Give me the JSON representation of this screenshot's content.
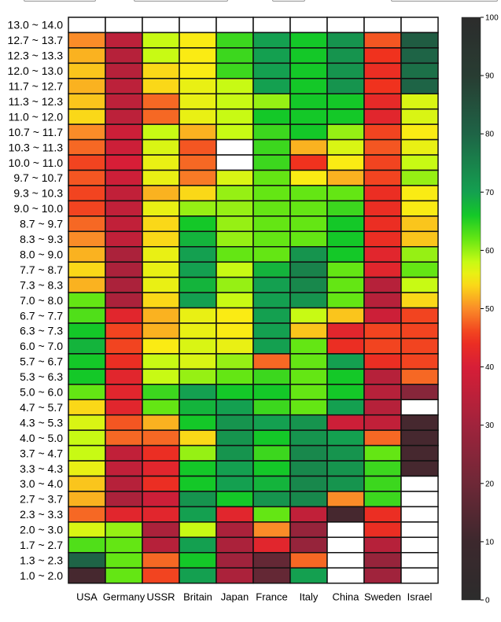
{
  "controls": [
    {
      "name": "dropdown-1"
    },
    {
      "name": "dropdown-2"
    },
    {
      "name": "dropdown-3"
    },
    {
      "name": "dropdown-4"
    }
  ],
  "chart_data": {
    "type": "heatmap",
    "x_categories": [
      "USA",
      "Germany",
      "USSR",
      "Britain",
      "Japan",
      "France",
      "Italy",
      "China",
      "Sweden",
      "Israel"
    ],
    "y_categories": [
      "13.0 ~ 14.0",
      "12.7 ~ 13.7",
      "12.3 ~ 13.3",
      "12.0 ~ 13.0",
      "11.7 ~ 12.7",
      "11.3 ~ 12.3",
      "11.0 ~ 12.0",
      "10.7 ~ 11.7",
      "10.3 ~ 11.3",
      "10.0 ~ 11.0",
      "9.7 ~ 10.7",
      "9.3 ~ 10.3",
      "9.0 ~ 10.0",
      "8.7 ~ 9.7",
      "8.3 ~ 9.3",
      "8.0 ~ 9.0",
      "7.7 ~ 8.7",
      "7.3 ~ 8.3",
      "7.0 ~ 8.0",
      "6.7 ~ 7.7",
      "6.3 ~ 7.3",
      "6.0 ~ 7.0",
      "5.7 ~ 6.7",
      "5.3 ~ 6.3",
      "5.0 ~ 6.0",
      "4.7 ~ 5.7",
      "4.3 ~ 5.3",
      "4.0 ~ 5.0",
      "3.7 ~ 4.7",
      "3.3 ~ 4.3",
      "3.0 ~ 4.0",
      "2.7 ~ 3.7",
      "2.3 ~ 3.3",
      "2.0 ~ 3.0",
      "1.7 ~ 2.7",
      "1.3 ~ 2.3",
      "1.0 ~ 2.0"
    ],
    "values": [
      [
        null,
        null,
        null,
        null,
        null,
        null,
        null,
        null,
        null,
        null
      ],
      [
        50,
        35,
        58,
        55,
        64,
        70,
        66,
        72,
        47,
        82
      ],
      [
        52,
        34,
        58,
        55,
        64,
        70,
        66,
        72,
        45,
        80
      ],
      [
        53,
        34,
        54,
        55,
        64,
        70,
        66,
        72,
        44,
        78
      ],
      [
        52,
        35,
        54,
        56,
        58,
        70,
        66,
        72,
        45,
        80
      ],
      [
        53,
        35,
        48,
        56,
        58,
        60,
        66,
        66,
        43,
        57
      ],
      [
        54,
        35,
        48,
        56,
        58,
        66,
        66,
        66,
        42,
        57
      ],
      [
        50,
        38,
        58,
        52,
        58,
        64,
        66,
        60,
        46,
        55
      ],
      [
        48,
        38,
        57,
        47,
        null,
        64,
        52,
        57,
        47,
        56
      ],
      [
        46,
        40,
        56,
        48,
        null,
        64,
        45,
        55,
        46,
        58
      ],
      [
        47,
        38,
        56,
        49,
        57,
        62,
        55,
        52,
        46,
        60
      ],
      [
        46,
        36,
        52,
        54,
        60,
        62,
        62,
        62,
        44,
        55
      ],
      [
        46,
        36,
        56,
        60,
        60,
        62,
        62,
        64,
        44,
        55
      ],
      [
        48,
        36,
        54,
        66,
        60,
        62,
        62,
        66,
        44,
        53
      ],
      [
        50,
        36,
        54,
        68,
        60,
        62,
        62,
        66,
        44,
        53
      ],
      [
        52,
        32,
        56,
        70,
        62,
        62,
        72,
        66,
        42,
        60
      ],
      [
        54,
        32,
        56,
        70,
        58,
        68,
        75,
        62,
        42,
        62
      ],
      [
        52,
        32,
        56,
        68,
        60,
        70,
        74,
        62,
        34,
        58
      ],
      [
        62,
        32,
        54,
        70,
        58,
        70,
        72,
        62,
        34,
        54
      ],
      [
        63,
        42,
        52,
        56,
        55,
        70,
        58,
        53,
        38,
        46
      ],
      [
        66,
        46,
        52,
        56,
        55,
        70,
        53,
        42,
        46,
        46
      ],
      [
        68,
        46,
        55,
        57,
        56,
        70,
        62,
        44,
        46,
        46
      ],
      [
        66,
        44,
        58,
        57,
        60,
        48,
        62,
        70,
        44,
        46
      ],
      [
        66,
        42,
        58,
        60,
        62,
        64,
        62,
        66,
        34,
        48
      ],
      [
        62,
        42,
        64,
        70,
        66,
        66,
        62,
        66,
        34,
        25
      ],
      [
        54,
        42,
        62,
        68,
        70,
        64,
        62,
        70,
        34,
        null
      ],
      [
        57,
        47,
        52,
        66,
        72,
        70,
        72,
        38,
        36,
        12
      ],
      [
        58,
        48,
        48,
        54,
        72,
        66,
        72,
        70,
        48,
        12
      ],
      [
        58,
        36,
        44,
        60,
        72,
        64,
        74,
        72,
        62,
        12
      ],
      [
        56,
        36,
        42,
        66,
        70,
        66,
        74,
        72,
        64,
        12
      ],
      [
        53,
        34,
        44,
        66,
        70,
        68,
        74,
        72,
        64,
        null
      ],
      [
        52,
        32,
        38,
        72,
        66,
        72,
        74,
        50,
        64,
        null
      ],
      [
        48,
        42,
        42,
        70,
        42,
        62,
        36,
        12,
        44,
        null
      ],
      [
        57,
        60,
        32,
        58,
        32,
        50,
        28,
        null,
        44,
        null
      ],
      [
        63,
        62,
        34,
        70,
        32,
        42,
        28,
        null,
        34,
        null
      ],
      [
        80,
        62,
        48,
        66,
        30,
        18,
        48,
        null,
        28,
        null
      ],
      [
        12,
        62,
        46,
        70,
        32,
        18,
        70,
        null,
        30,
        null
      ]
    ],
    "colorbar": {
      "min": 0,
      "max": 100,
      "ticks": [
        0,
        10,
        20,
        30,
        40,
        50,
        60,
        70,
        80,
        90,
        100
      ]
    },
    "colors": {
      "null_cell": "#ffffff",
      "grid": "#111111"
    }
  }
}
